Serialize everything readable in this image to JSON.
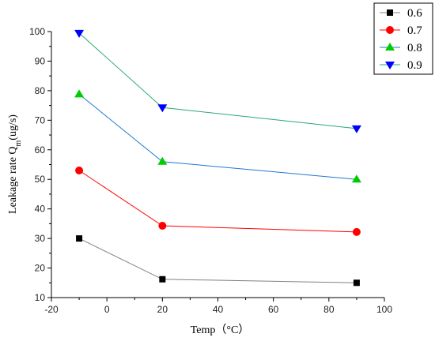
{
  "chart_data": {
    "type": "line",
    "xlabel": "Temp（°C）",
    "ylabel_main": "Leakage rate Q",
    "ylabel_sub": "m",
    "ylabel_unit": "(ug/s)",
    "xlim": [
      -20,
      100
    ],
    "ylim": [
      10,
      100
    ],
    "xticks": [
      -20,
      0,
      20,
      40,
      60,
      80,
      100
    ],
    "yticks": [
      10,
      20,
      30,
      40,
      50,
      60,
      70,
      80,
      90,
      100
    ],
    "x": [
      -10,
      20,
      90
    ],
    "legend_position": "outside-top-right",
    "grid": false,
    "series": [
      {
        "name": "0.6",
        "values": [
          30,
          16.2,
          15
        ],
        "color": "#000000",
        "line_color": "#808080",
        "marker": "square"
      },
      {
        "name": "0.7",
        "values": [
          53,
          34.3,
          32.2
        ],
        "color": "#ff0000",
        "line_color": "#ff0000",
        "marker": "circle"
      },
      {
        "name": "0.8",
        "values": [
          78.8,
          56,
          50
        ],
        "color": "#00cc00",
        "line_color": "#1f77d4",
        "marker": "triangle-up"
      },
      {
        "name": "0.9",
        "values": [
          99.5,
          74.3,
          67.2
        ],
        "color": "#0000ff",
        "line_color": "#2aa876",
        "marker": "triangle-down"
      }
    ]
  }
}
